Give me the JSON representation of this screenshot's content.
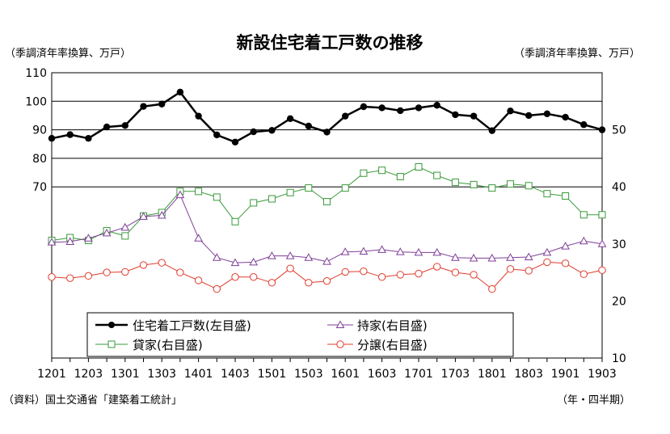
{
  "chart_data": {
    "type": "line",
    "title": "新設住宅着工戸数の推移",
    "left_unit": "（季調済年率換算、万戸）",
    "right_unit": "（季調済年率換算、万戸）",
    "source": "（資料）国土交通省「建築着工統計」",
    "period_label": "（年・四半期）",
    "x_tick_labels": [
      "1201",
      "1203",
      "1301",
      "1303",
      "1401",
      "1403",
      "1501",
      "1503",
      "1601",
      "1603",
      "1701",
      "1703",
      "1801",
      "1803",
      "1901",
      "1903"
    ],
    "left_axis": {
      "ylim": [
        10,
        110
      ],
      "ticks": [
        "110",
        "100",
        "90",
        "80",
        "70"
      ]
    },
    "right_axis": {
      "ylim": [
        10,
        60
      ],
      "ticks": [
        "50",
        "40",
        "30",
        "20",
        "10"
      ]
    },
    "grid": true,
    "legend_position": "bottom-left inside plot",
    "series": [
      {
        "name": "住宅着工戸数(左目盛)",
        "axis": "left",
        "color": "#000000",
        "marker": "filled-circle",
        "values": [
          87.0,
          88.3,
          87.0,
          91.0,
          91.5,
          98.2,
          99.0,
          103.2,
          94.8,
          88.2,
          85.7,
          89.3,
          89.8,
          93.9,
          91.3,
          89.2,
          94.8,
          98.1,
          97.7,
          96.7,
          97.7,
          98.6,
          95.3,
          94.8,
          89.7,
          96.6,
          95.0,
          95.6,
          94.4,
          91.8,
          90.0
        ]
      },
      {
        "name": "持家(右目盛)",
        "axis": "right",
        "color": "#7f3f98",
        "marker": "open-triangle",
        "values": [
          30.3,
          30.4,
          31.0,
          31.9,
          32.9,
          34.8,
          35.0,
          38.6,
          31.0,
          27.6,
          26.7,
          26.8,
          27.9,
          27.9,
          27.6,
          26.9,
          28.6,
          28.7,
          29.0,
          28.6,
          28.5,
          28.5,
          27.6,
          27.5,
          27.5,
          27.6,
          27.7,
          28.5,
          29.6,
          30.5,
          30.0
        ]
      },
      {
        "name": "貸家(右目盛)",
        "axis": "right",
        "color": "#3a9a3a",
        "marker": "open-square",
        "values": [
          30.6,
          31.1,
          30.6,
          32.3,
          31.4,
          34.9,
          35.5,
          39.2,
          39.2,
          38.2,
          33.9,
          37.2,
          37.9,
          39.0,
          39.8,
          37.4,
          39.8,
          42.4,
          42.9,
          41.8,
          43.5,
          42.0,
          40.8,
          40.4,
          39.8,
          40.5,
          40.2,
          38.8,
          38.4,
          35.1,
          35.1
        ]
      },
      {
        "name": "分譲(右目盛)",
        "axis": "right",
        "color": "#e03c2c",
        "marker": "open-circle",
        "values": [
          24.2,
          24.0,
          24.4,
          25.0,
          25.1,
          26.3,
          26.7,
          25.0,
          23.6,
          22.1,
          24.2,
          24.2,
          23.2,
          25.7,
          23.2,
          23.5,
          25.1,
          25.2,
          24.2,
          24.6,
          24.8,
          26.0,
          25.0,
          24.6,
          22.1,
          25.6,
          25.3,
          26.8,
          26.6,
          24.7,
          25.4
        ]
      }
    ]
  }
}
